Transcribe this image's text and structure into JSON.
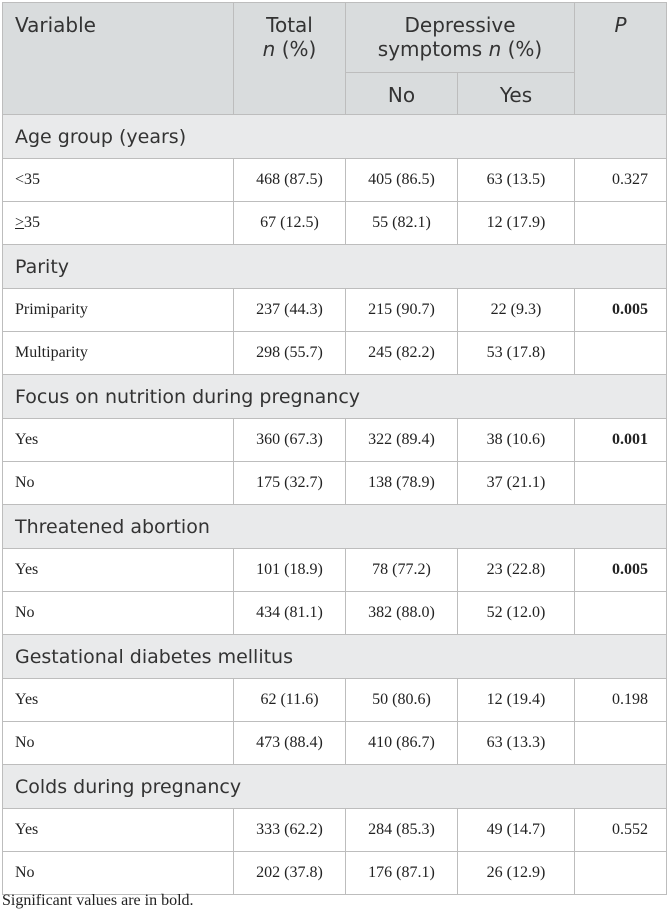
{
  "header": {
    "variable": "Variable",
    "total_line1": "Total",
    "total_n": "n",
    "total_pct": "(%)",
    "dep_line1": "Depressive",
    "dep_line2": "symptoms",
    "dep_n": "n",
    "dep_pct": "(%)",
    "p": "P",
    "no": "No",
    "yes": "Yes"
  },
  "groups": [
    {
      "title": "Age group (years)",
      "rows": [
        {
          "label": "<35",
          "total": "468 (87.5)",
          "no": "405 (86.5)",
          "yes": "63 (13.5)",
          "p": "0.327"
        },
        {
          "label": "≥35",
          "total": "67 (12.5)",
          "no": "55 (82.1)",
          "yes": "12 (17.9)",
          "p": ""
        }
      ]
    },
    {
      "title": "Parity",
      "rows": [
        {
          "label": "Primiparity",
          "total": "237 (44.3)",
          "no": "215 (90.7)",
          "yes": "22 (9.3)",
          "p": "0.005"
        },
        {
          "label": "Multiparity",
          "total": "298 (55.7)",
          "no": "245 (82.2)",
          "yes": "53 (17.8)",
          "p": ""
        }
      ]
    },
    {
      "title": "Focus on nutrition during pregnancy",
      "rows": [
        {
          "label": "Yes",
          "total": "360 (67.3)",
          "no": "322 (89.4)",
          "yes": "38 (10.6)",
          "p": "0.001"
        },
        {
          "label": "No",
          "total": "175 (32.7)",
          "no": "138 (78.9)",
          "yes": "37 (21.1)",
          "p": ""
        }
      ]
    },
    {
      "title": "Threatened abortion",
      "rows": [
        {
          "label": "Yes",
          "total": "101 (18.9)",
          "no": "78 (77.2)",
          "yes": "23 (22.8)",
          "p": "0.005"
        },
        {
          "label": "No",
          "total": "434 (81.1)",
          "no": "382 (88.0)",
          "yes": "52 (12.0)",
          "p": ""
        }
      ]
    },
    {
      "title": "Gestational diabetes mellitus",
      "rows": [
        {
          "label": "Yes",
          "total": "62 (11.6)",
          "no": "50 (80.6)",
          "yes": "12 (19.4)",
          "p": "0.198"
        },
        {
          "label": "No",
          "total": "473 (88.4)",
          "no": "410 (86.7)",
          "yes": "63 (13.3)",
          "p": ""
        }
      ]
    },
    {
      "title": "Colds during pregnancy",
      "rows": [
        {
          "label": "Yes",
          "total": "333 (62.2)",
          "no": "284 (85.3)",
          "yes": "49 (14.7)",
          "p": "0.552"
        },
        {
          "label": "No",
          "total": "202 (37.8)",
          "no": "176 (87.1)",
          "yes": "26 (12.9)",
          "p": ""
        }
      ]
    }
  ],
  "footnote": "Significant values are in bold."
}
